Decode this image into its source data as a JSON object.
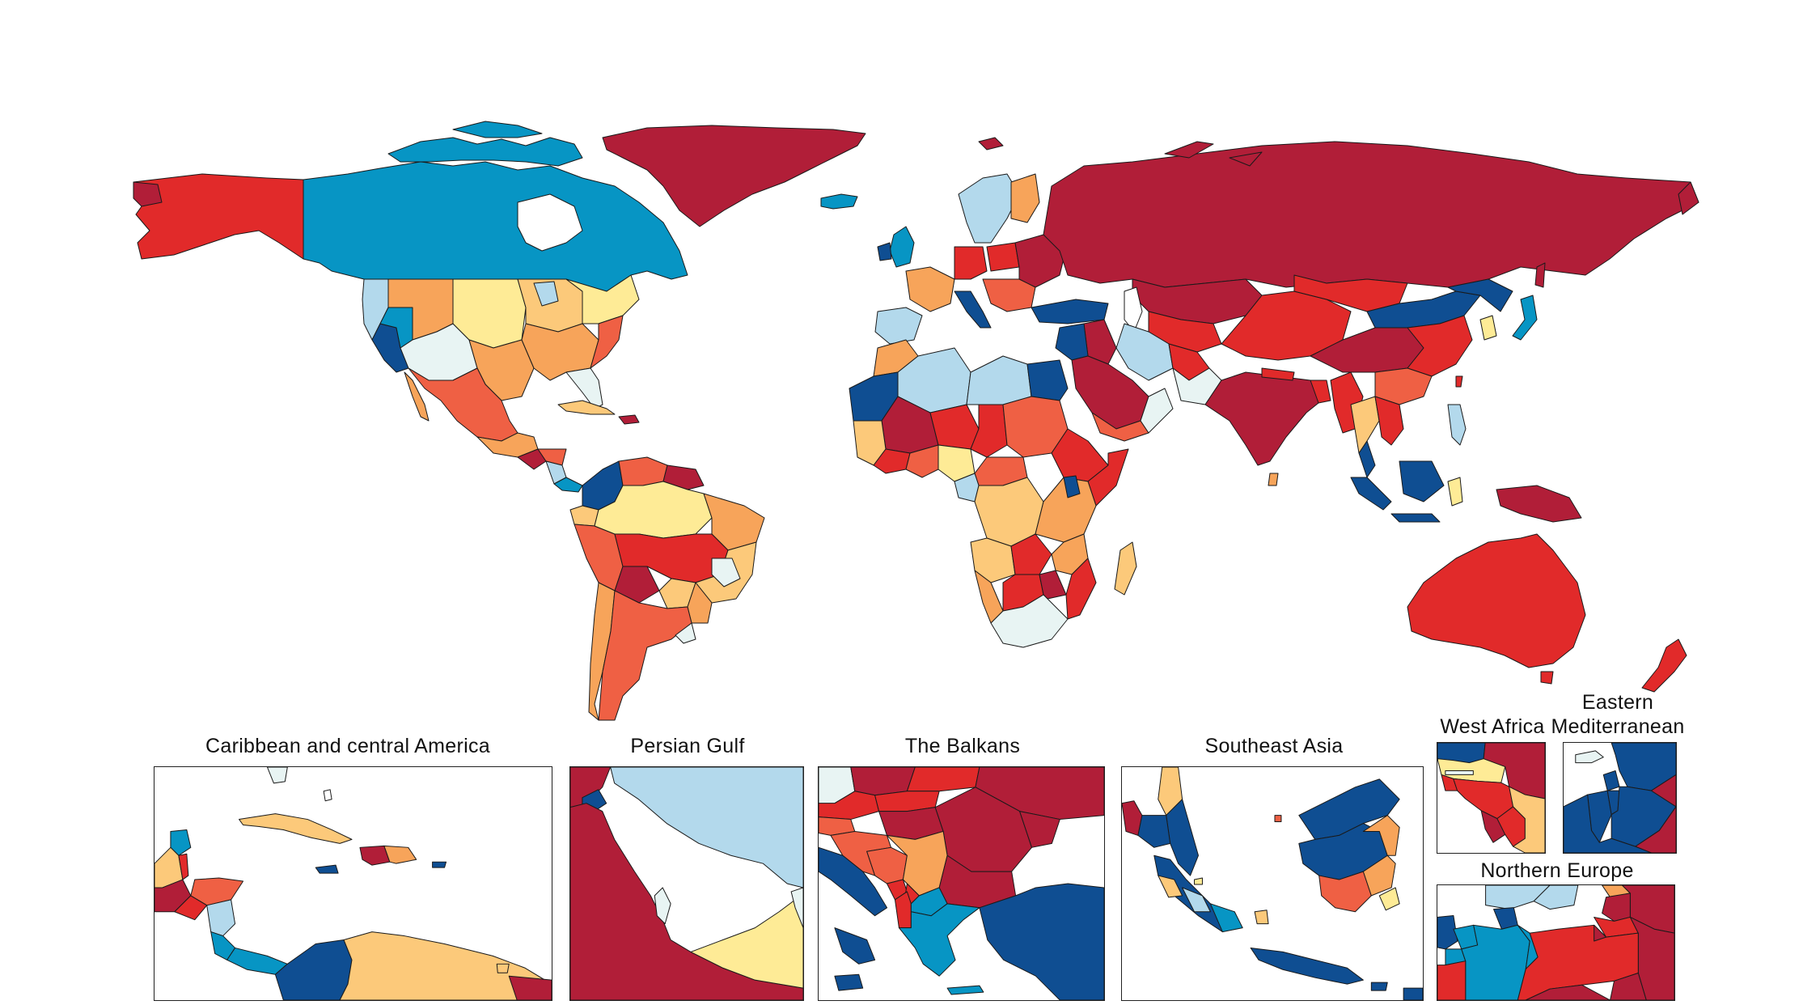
{
  "palette": {
    "dark_red": "#b11e38",
    "red": "#e12a2a",
    "red_orange": "#ef6044",
    "orange": "#f7a45a",
    "light_orange": "#fcc97a",
    "pale_yellow": "#feeb96",
    "pale_cyan": "#e8f4f3",
    "light_blue": "#b3d9ec",
    "blue": "#0795c4",
    "dark_blue": "#0f4e92",
    "border": "#1a1a1a",
    "water": "#ffffff"
  },
  "insets": [
    {
      "id": "caribbean",
      "title": "Caribbean and central America"
    },
    {
      "id": "persian-gulf",
      "title": "Persian Gulf"
    },
    {
      "id": "balkans",
      "title": "The Balkans"
    },
    {
      "id": "southeast-asia",
      "title": "Southeast Asia"
    },
    {
      "id": "west-africa",
      "title": "West Africa"
    },
    {
      "id": "eastern-med",
      "title_line1": "Eastern",
      "title_line2": "Mediterranean"
    },
    {
      "id": "northern-europe",
      "title": "Northern Europe"
    }
  ]
}
